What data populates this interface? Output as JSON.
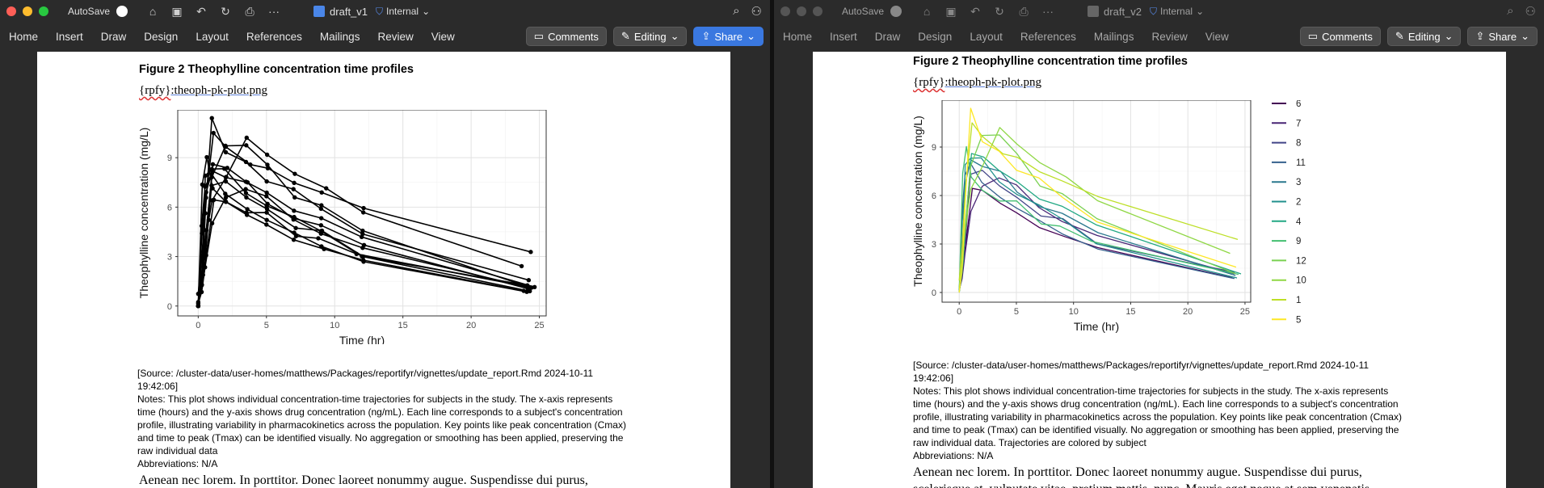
{
  "windows": [
    {
      "autosave_label": "AutoSave",
      "doc_name": "draft_v1",
      "sensitivity": "Internal",
      "tabs": [
        "Home",
        "Insert",
        "Draw",
        "Design",
        "Layout",
        "References",
        "Mailings",
        "Review",
        "View"
      ],
      "comments_label": "Comments",
      "editing_label": "Editing",
      "share_label": "Share",
      "figure_title": "Figure 2 Theophylline concentration time profiles",
      "rpfy_prefix": "{rpfy}",
      "rpfy_file": ":theoph-pk-plot.png",
      "source_line": "[Source: /cluster-data/user-homes/matthews/Packages/reportifyr/vignettes/update_report.Rmd 2024-10-11 19:42:06]",
      "notes": "Notes: This plot shows individual concentration-time trajectories for subjects in the study. The x-axis represents time (hours) and the y-axis shows drug concentration (ng/mL). Each line corresponds to a subject's concentration profile, illustrating variability in pharmacokinetics across the population. Key points like peak concentration (Cmax) and time to peak (Tmax) can be identified visually. No aggregation or smoothing has been applied, preserving the raw individual data",
      "abbreviations": "Abbreviations: N/A",
      "body_text": "Aenean nec lorem. In porttitor. Donec laoreet nonummy augue. Suspendisse dui purus,"
    },
    {
      "autosave_label": "AutoSave",
      "doc_name": "draft_v2",
      "sensitivity": "Internal",
      "tabs": [
        "Home",
        "Insert",
        "Draw",
        "Design",
        "Layout",
        "References",
        "Mailings",
        "Review",
        "View"
      ],
      "comments_label": "Comments",
      "editing_label": "Editing",
      "share_label": "Share",
      "figure_title": "Figure 2 Theophylline concentration time profiles",
      "rpfy_prefix": "{rpfy}",
      "rpfy_file": ":theoph-pk-plot.png",
      "source_line": "[Source: /cluster-data/user-homes/matthews/Packages/reportifyr/vignettes/update_report.Rmd 2024-10-11 19:42:06]",
      "notes": "Notes: This plot shows individual concentration-time trajectories for subjects in the study. The x-axis represents time (hours) and the y-axis shows drug concentration (ng/mL). Each line corresponds to a subject's concentration profile, illustrating variability in pharmacokinetics across the population. Key points like peak concentration (Cmax) and time to peak (Tmax) can be identified visually. No aggregation or smoothing has been applied, preserving the raw individual data. Trajectories are colored by subject",
      "abbreviations": "Abbreviations: N/A",
      "body_text": "Aenean nec lorem. In porttitor. Donec laoreet nonummy augue. Suspendisse dui purus, scelerisque at, vulputate vitae, pretium mattis, nunc. Mauris eget neque at sem venenatis"
    }
  ],
  "chart_data": [
    {
      "type": "line",
      "xlabel": "Time (hr)",
      "ylabel": "Theophylline concentration (mg/L)",
      "xlim": [
        -1.5,
        25.5
      ],
      "ylim": [
        -0.6,
        11.9
      ],
      "xticks": [
        0,
        5,
        10,
        15,
        20,
        25
      ],
      "yticks": [
        0,
        3,
        6,
        9
      ],
      "grid": true,
      "markers": true,
      "legend": null,
      "colors": {
        "line": "#000000"
      },
      "series": [
        {
          "x": [
            0,
            0.25,
            0.57,
            1.12,
            2.02,
            3.82,
            5.1,
            7.03,
            9.05,
            12.12,
            24.37
          ],
          "y": [
            0.74,
            2.84,
            6.57,
            10.5,
            9.66,
            8.58,
            8.36,
            7.47,
            6.89,
            5.94,
            3.28
          ]
        },
        {
          "x": [
            0,
            0.27,
            0.52,
            1,
            1.92,
            3.5,
            5.02,
            7.03,
            9,
            12,
            24.3
          ],
          "y": [
            0,
            1.72,
            7.91,
            8.31,
            8.33,
            6.85,
            6.08,
            5.4,
            4.55,
            3.01,
            0.9
          ]
        },
        {
          "x": [
            0,
            0.27,
            0.58,
            1.02,
            2.02,
            3.62,
            5.08,
            7.07,
            9,
            12.15,
            24.17
          ],
          "y": [
            0,
            4.4,
            6.9,
            8.2,
            7.8,
            7.5,
            6.2,
            5.3,
            4.9,
            3.7,
            1.05
          ]
        },
        {
          "x": [
            0,
            0.35,
            0.6,
            1.07,
            2.13,
            3.5,
            5.02,
            7.02,
            9.02,
            11.98,
            24.65
          ],
          "y": [
            0,
            1.89,
            4.6,
            8.6,
            8.38,
            7.54,
            6.88,
            5.78,
            5.33,
            4.19,
            1.15
          ]
        },
        {
          "x": [
            0,
            0.3,
            0.52,
            1,
            2.02,
            3.5,
            5.02,
            6.98,
            9,
            12.05,
            24.22
          ],
          "y": [
            0,
            2.02,
            5.63,
            11.4,
            9.33,
            8.74,
            7.56,
            7.09,
            5.9,
            4.37,
            1.57
          ]
        },
        {
          "x": [
            0,
            0.27,
            0.58,
            1.15,
            2.03,
            3.57,
            5,
            7,
            9.22,
            12.1,
            23.85
          ],
          "y": [
            0,
            1.29,
            3.08,
            6.44,
            6.32,
            5.53,
            4.94,
            4.02,
            3.46,
            2.78,
            0.92
          ]
        },
        {
          "x": [
            0,
            0.25,
            0.5,
            1.02,
            2.02,
            3.48,
            5,
            6.98,
            9,
            12.05,
            24.08
          ],
          "y": [
            0.15,
            0.85,
            2.35,
            5.02,
            6.58,
            7.09,
            6.66,
            5.25,
            4.39,
            3.53,
            1.15
          ]
        },
        {
          "x": [
            0,
            0.25,
            0.52,
            0.98,
            2.02,
            3.53,
            5.05,
            7.15,
            9.07,
            12.1,
            24.12
          ],
          "y": [
            0,
            3.05,
            3.05,
            7.31,
            7.56,
            6.59,
            5.88,
            4.73,
            4.57,
            3,
            1.25
          ]
        },
        {
          "x": [
            0,
            0.3,
            0.63,
            1.05,
            2.02,
            3.53,
            5.02,
            7.17,
            8.8,
            11.6,
            24.43
          ],
          "y": [
            0,
            7.37,
            9.03,
            7.14,
            6.33,
            5.66,
            5.67,
            4.24,
            4.11,
            3.16,
            1.12
          ]
        },
        {
          "x": [
            0,
            0.37,
            0.77,
            1.02,
            2.05,
            3.55,
            5.05,
            7.08,
            9.38,
            12.1,
            23.7
          ],
          "y": [
            0.24,
            2.89,
            5.22,
            6.41,
            7.83,
            10.21,
            9.18,
            8.02,
            7.14,
            5.68,
            2.42
          ]
        },
        {
          "x": [
            0,
            0.25,
            0.5,
            0.98,
            1.98,
            3.6,
            5.02,
            7.03,
            9.03,
            12.12,
            24.08
          ],
          "y": [
            0,
            4.86,
            7.24,
            8,
            6.81,
            5.87,
            5.22,
            4.45,
            3.62,
            2.69,
            0.86
          ]
        },
        {
          "x": [
            0,
            0.25,
            0.5,
            1,
            2,
            3.52,
            5.07,
            7.07,
            9.03,
            12.05,
            24.15
          ],
          "y": [
            0,
            1.25,
            3.96,
            7.82,
            9.72,
            9.75,
            8.57,
            6.59,
            6.11,
            4.57,
            1.17
          ]
        }
      ]
    },
    {
      "type": "line",
      "xlabel": "Time (hr)",
      "ylabel": "Theophylline concentration (mg/L)",
      "xlim": [
        -1.5,
        25.5
      ],
      "ylim": [
        -0.6,
        11.9
      ],
      "xticks": [
        0,
        5,
        10,
        15,
        20,
        25
      ],
      "yticks": [
        0,
        3,
        6,
        9
      ],
      "grid": true,
      "markers": false,
      "legend": "right",
      "series": [
        {
          "name": "6",
          "color": "#440154",
          "x": [
            0,
            0.27,
            0.58,
            1.15,
            2.03,
            3.57,
            5,
            7,
            9.22,
            12.1,
            23.85
          ],
          "y": [
            0,
            1.29,
            3.08,
            6.44,
            6.32,
            5.53,
            4.94,
            4.02,
            3.46,
            2.78,
            0.92
          ]
        },
        {
          "name": "7",
          "color": "#482575",
          "x": [
            0,
            0.25,
            0.5,
            1.02,
            2.02,
            3.48,
            5,
            6.98,
            9,
            12.05,
            24.08
          ],
          "y": [
            0.15,
            0.85,
            2.35,
            5.02,
            6.58,
            7.09,
            6.66,
            5.25,
            4.39,
            3.53,
            1.15
          ]
        },
        {
          "name": "8",
          "color": "#414487",
          "x": [
            0,
            0.25,
            0.52,
            0.98,
            2.02,
            3.53,
            5.05,
            7.15,
            9.07,
            12.1,
            24.12
          ],
          "y": [
            0,
            3.05,
            3.05,
            7.31,
            7.56,
            6.59,
            5.88,
            4.73,
            4.57,
            3,
            1.25
          ]
        },
        {
          "name": "11",
          "color": "#35608d",
          "x": [
            0,
            0.25,
            0.5,
            0.98,
            1.98,
            3.6,
            5.02,
            7.03,
            9.03,
            12.12,
            24.08
          ],
          "y": [
            0,
            4.86,
            7.24,
            8,
            6.81,
            5.87,
            5.22,
            4.45,
            3.62,
            2.69,
            0.86
          ]
        },
        {
          "name": "3",
          "color": "#2a788e",
          "x": [
            0,
            0.27,
            0.58,
            1.02,
            2.02,
            3.62,
            5.08,
            7.07,
            9,
            12.15,
            24.17
          ],
          "y": [
            0,
            4.4,
            6.9,
            8.2,
            7.8,
            7.5,
            6.2,
            5.3,
            4.9,
            3.7,
            1.05
          ]
        },
        {
          "name": "2",
          "color": "#21908d",
          "x": [
            0,
            0.27,
            0.52,
            1,
            1.92,
            3.5,
            5.02,
            7.03,
            9,
            12,
            24.3
          ],
          "y": [
            0,
            1.72,
            7.91,
            8.31,
            8.33,
            6.85,
            6.08,
            5.4,
            4.55,
            3.01,
            0.9
          ]
        },
        {
          "name": "4",
          "color": "#22a884",
          "x": [
            0,
            0.35,
            0.6,
            1.07,
            2.13,
            3.5,
            5.02,
            7.02,
            9.02,
            11.98,
            24.65
          ],
          "y": [
            0,
            1.89,
            4.6,
            8.6,
            8.38,
            7.54,
            6.88,
            5.78,
            5.33,
            4.19,
            1.15
          ]
        },
        {
          "name": "9",
          "color": "#43bf71",
          "x": [
            0,
            0.3,
            0.63,
            1.05,
            2.02,
            3.53,
            5.02,
            7.17,
            8.8,
            11.6,
            24.43
          ],
          "y": [
            0,
            7.37,
            9.03,
            7.14,
            6.33,
            5.66,
            5.67,
            4.24,
            4.11,
            3.16,
            1.12
          ]
        },
        {
          "name": "12",
          "color": "#7ad151",
          "x": [
            0,
            0.25,
            0.5,
            1,
            2,
            3.52,
            5.07,
            7.07,
            9.03,
            12.05,
            24.15
          ],
          "y": [
            0,
            1.25,
            3.96,
            7.82,
            9.72,
            9.75,
            8.57,
            6.59,
            6.11,
            4.57,
            1.17
          ]
        },
        {
          "name": "10",
          "color": "#8fd744",
          "x": [
            0,
            0.37,
            0.77,
            1.02,
            2.05,
            3.55,
            5.05,
            7.08,
            9.38,
            12.1,
            23.7
          ],
          "y": [
            0.24,
            2.89,
            5.22,
            6.41,
            7.83,
            10.21,
            9.18,
            8.02,
            7.14,
            5.68,
            2.42
          ]
        },
        {
          "name": "1",
          "color": "#bddf26",
          "x": [
            0,
            0.25,
            0.57,
            1.12,
            2.02,
            3.82,
            5.1,
            7.03,
            9.05,
            12.12,
            24.37
          ],
          "y": [
            0.74,
            2.84,
            6.57,
            10.5,
            9.66,
            8.58,
            8.36,
            7.47,
            6.89,
            5.94,
            3.28
          ]
        },
        {
          "name": "5",
          "color": "#fde725",
          "x": [
            0,
            0.3,
            0.52,
            1,
            2.02,
            3.5,
            5.02,
            6.98,
            9,
            12.05,
            24.22
          ],
          "y": [
            0,
            2.02,
            5.63,
            11.4,
            9.33,
            8.74,
            7.56,
            7.09,
            5.9,
            4.37,
            1.57
          ]
        }
      ]
    }
  ]
}
